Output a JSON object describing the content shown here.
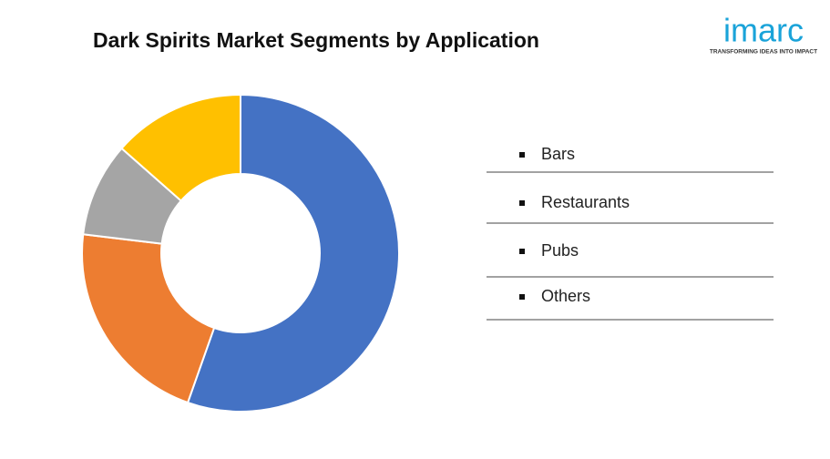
{
  "chart_data": {
    "type": "donut",
    "title": "Dark Spirits Market Segments by Application",
    "categories": [
      "Bars",
      "Restaurants",
      "Pubs",
      "Others"
    ],
    "values": [
      55.4,
      21.5,
      9.6,
      13.5
    ],
    "colors": [
      "#4472c4",
      "#ed7d31",
      "#a5a5a5",
      "#ffc000"
    ]
  },
  "logo": {
    "name": "imarc",
    "tagline": "TRANSFORMING IDEAS INTO IMPACT"
  }
}
